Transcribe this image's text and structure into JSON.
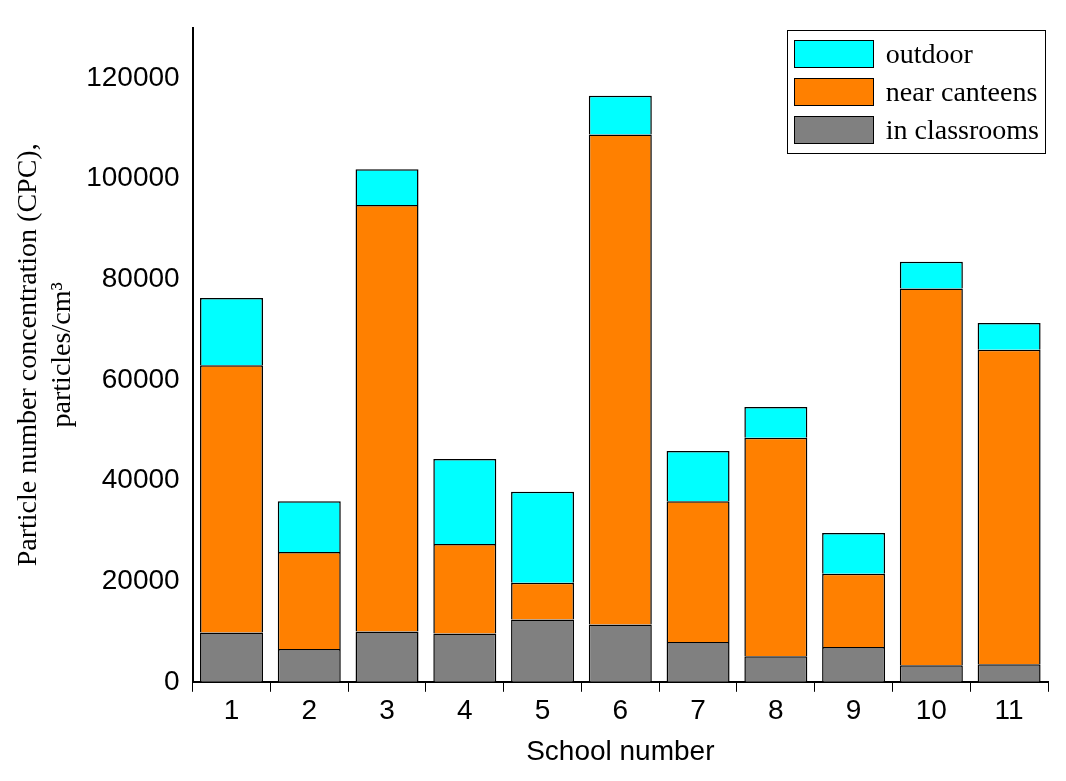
{
  "chart_data": {
    "type": "bar",
    "stacked": true,
    "xlabel": "School number",
    "ylabel": "Particle number concentration (CPC),\nparticles/cm³",
    "categories": [
      "1",
      "2",
      "3",
      "4",
      "5",
      "6",
      "7",
      "8",
      "9",
      "10",
      "11"
    ],
    "series": [
      {
        "name": "in classrooms",
        "color": "#808080",
        "values": [
          9800,
          6500,
          10000,
          9600,
          12400,
          11400,
          7900,
          5100,
          6900,
          3300,
          3500
        ]
      },
      {
        "name": "near canteens",
        "color": "#ff8000",
        "values": [
          53100,
          19300,
          84800,
          17800,
          7300,
          97400,
          28000,
          43400,
          14600,
          74900,
          62500
        ]
      },
      {
        "name": "outdoor",
        "color": "#00ffff",
        "values": [
          13400,
          10100,
          7100,
          16900,
          18100,
          7700,
          10000,
          6100,
          8100,
          5300,
          5300
        ]
      }
    ],
    "ylim": [
      0,
      130000
    ],
    "yticks": [
      0,
      20000,
      40000,
      60000,
      80000,
      100000,
      120000
    ],
    "grid": false,
    "legend": "top right"
  }
}
